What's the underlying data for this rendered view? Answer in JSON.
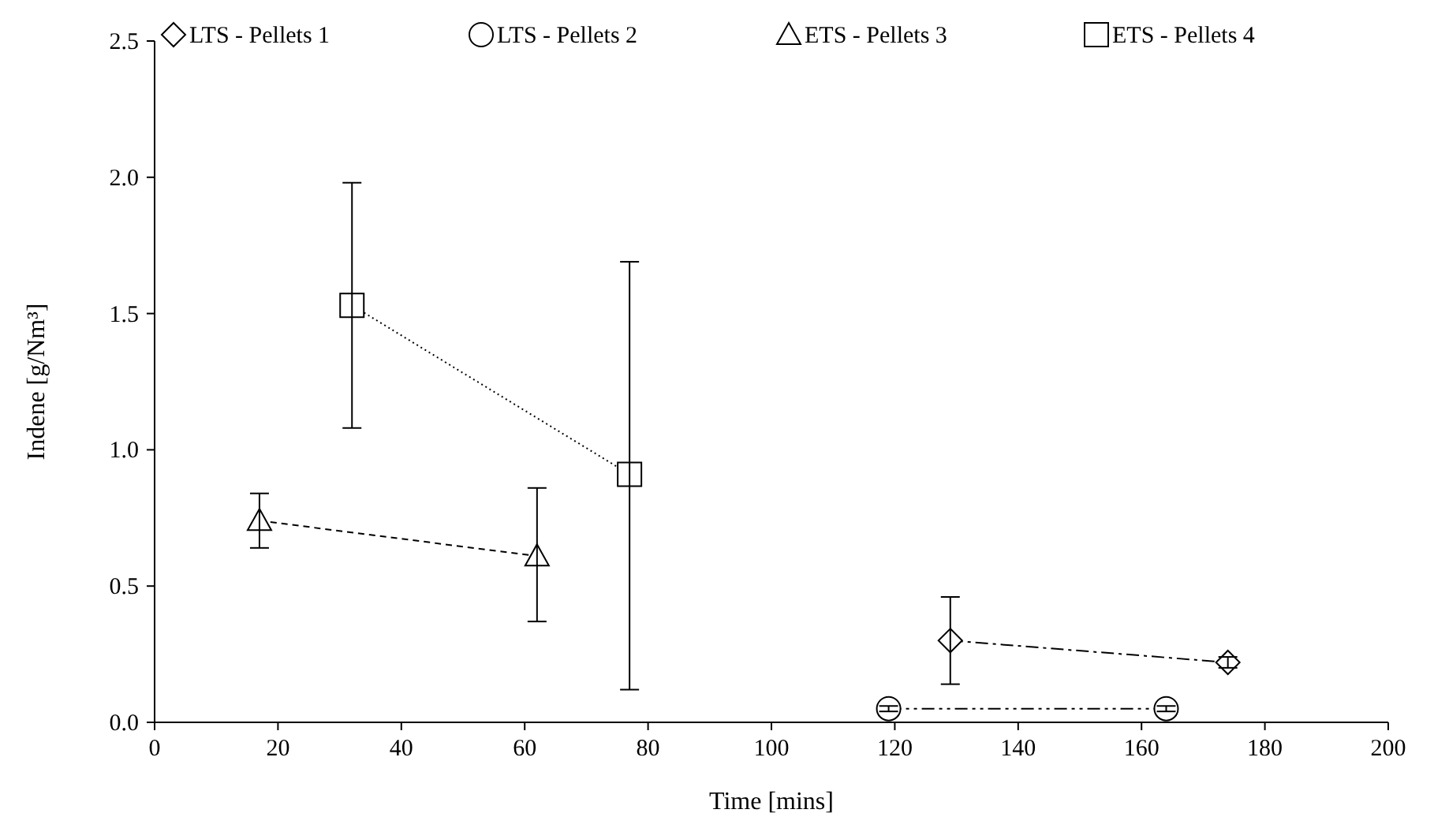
{
  "chart_data": {
    "type": "line",
    "xlabel": "Time [mins]",
    "ylabel": "Indene [g/Nm³]",
    "xlim": [
      0,
      200
    ],
    "xticks": [
      0,
      20,
      40,
      60,
      80,
      100,
      120,
      140,
      160,
      180,
      200
    ],
    "ylim": [
      0,
      2.5
    ],
    "yticks": [
      {
        "value": 0,
        "label": "0.0"
      },
      {
        "value": 0.5,
        "label": "0.5"
      },
      {
        "value": 1,
        "label": "1.0"
      },
      {
        "value": 1.5,
        "label": "1.5"
      },
      {
        "value": 2,
        "label": "2.0"
      },
      {
        "value": 2.5,
        "label": "2.5"
      }
    ],
    "grid": false,
    "legend": "top",
    "series": [
      {
        "name": "LTS - Pellets 1",
        "color": "#000000",
        "marker": "diamond",
        "line_style": "dashdot",
        "x": [
          129,
          174
        ],
        "values": [
          0.3,
          0.22
        ],
        "errors": [
          [
            0.14,
            0.46
          ],
          [
            0.2,
            0.24
          ]
        ]
      },
      {
        "name": "LTS - Pellets 2",
        "color": "#000000",
        "marker": "circle",
        "line_style": "dashdotdot",
        "x": [
          119,
          164
        ],
        "values": [
          0.05,
          0.05
        ],
        "errors": [
          [
            0.04,
            0.06
          ],
          [
            0.04,
            0.06
          ]
        ]
      },
      {
        "name": "ETS - Pellets 3",
        "color": "#000000",
        "marker": "triangle",
        "line_style": "dashed",
        "x": [
          17,
          62
        ],
        "values": [
          0.74,
          0.61
        ],
        "errors": [
          [
            0.64,
            0.84
          ],
          [
            0.37,
            0.86
          ]
        ]
      },
      {
        "name": "ETS - Pellets 4",
        "color": "#000000",
        "marker": "square",
        "line_style": "dotted",
        "x": [
          32,
          77
        ],
        "values": [
          1.53,
          0.91
        ],
        "errors": [
          [
            1.08,
            1.98
          ],
          [
            0.12,
            1.69
          ]
        ]
      }
    ]
  }
}
